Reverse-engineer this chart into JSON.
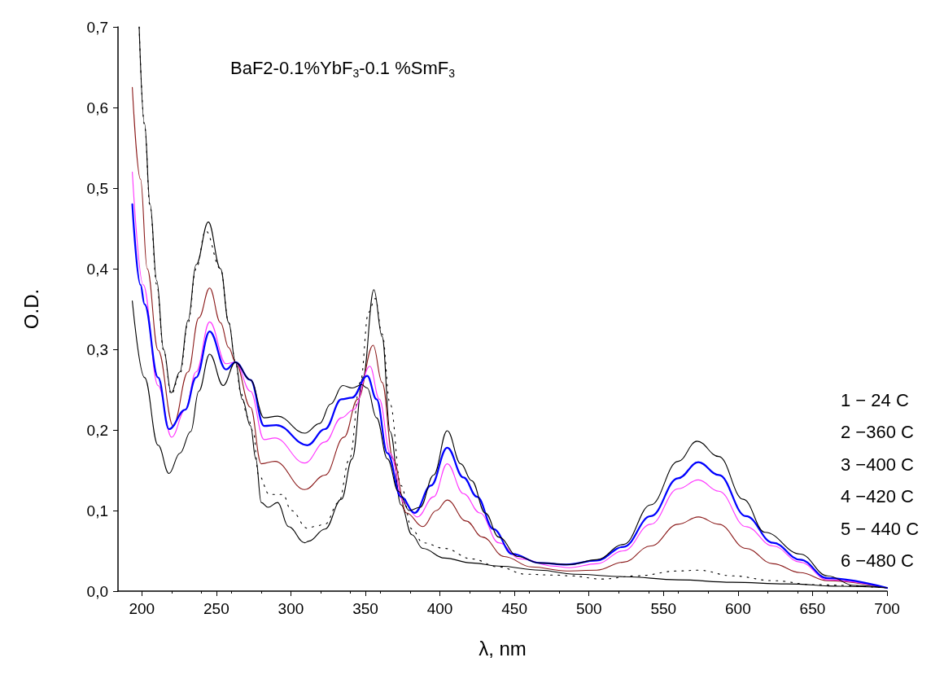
{
  "chart_data": {
    "type": "line",
    "title": "BaF2-0.1%YbF$_{3}$-0.1 %SmF$_{3}$",
    "xlabel": "λ, nm",
    "ylabel": "O.D.",
    "annotations": [
      "1 − 24 C",
      "2 −360 C",
      "3 −400 C",
      "4 −420 C",
      "5 − 440 C",
      "6 −480 C"
    ],
    "xlim": [
      184,
      700
    ],
    "xticks": [
      200,
      250,
      300,
      350,
      400,
      450,
      500,
      550,
      600,
      650,
      700
    ],
    "ylim": [
      0,
      0.7
    ],
    "yticks": [
      {
        "value": 0,
        "label": "0,0"
      },
      {
        "value": 0.1,
        "label": "0,1"
      },
      {
        "value": 0.2,
        "label": "0,2"
      },
      {
        "value": 0.3,
        "label": "0,3"
      },
      {
        "value": 0.4,
        "label": "0,4"
      },
      {
        "value": 0.5,
        "label": "0,5"
      },
      {
        "value": 0.6,
        "label": "0,6"
      },
      {
        "value": 0.7,
        "label": "0,7"
      }
    ],
    "grid": false,
    "marker": "none",
    "series": [
      {
        "color": "#000000",
        "line_style": "solid",
        "x": [
          198.2,
          201.8,
          205.5,
          210,
          214.6,
          219.7,
          225.5,
          231,
          236.4,
          244.6,
          252.8,
          258.3,
          262.8,
          267.4,
          272.9,
          276.5,
          280.1,
          284.7,
          291.1,
          298.4,
          309.3,
          312,
          322.9,
          333.9,
          341.1,
          348.4,
          355.7,
          361.2,
          366.6,
          373.9,
          381.2,
          388.5,
          403.1,
          421.3,
          439.5,
          466.8,
          490.5,
          523.3,
          559.8,
          596.2,
          632.6,
          669,
          700
        ],
        "values": [
          0.7,
          0.58,
          0.48,
          0.385,
          0.3,
          0.246,
          0.272,
          0.336,
          0.405,
          0.458,
          0.4,
          0.333,
          0.284,
          0.238,
          0.205,
          0.164,
          0.11,
          0.104,
          0.11,
          0.08,
          0.06,
          0.062,
          0.077,
          0.114,
          0.164,
          0.265,
          0.374,
          0.316,
          0.198,
          0.107,
          0.07,
          0.053,
          0.041,
          0.035,
          0.031,
          0.026,
          0.021,
          0.018,
          0.014,
          0.011,
          0.009,
          0.006,
          0.004
        ]
      },
      {
        "color": "#000000",
        "line_style": "dotted",
        "x": [
          198.2,
          201.8,
          205.5,
          210,
          214.6,
          219.7,
          225.5,
          231,
          236.4,
          242.8,
          252.8,
          258.3,
          262.8,
          266.5,
          271,
          274.7,
          278.3,
          285.6,
          294.7,
          300.2,
          311.1,
          315.6,
          322.9,
          332,
          339.3,
          346.6,
          352.1,
          356.6,
          361.2,
          366.6,
          373.9,
          381.2,
          388.5,
          403.1,
          421.3,
          439.5,
          457.7,
          475.9,
          486.9,
          508.8,
          532.4,
          559.8,
          573.4,
          596.2,
          623.5,
          650.8,
          700
        ],
        "values": [
          0.7,
          0.578,
          0.477,
          0.38,
          0.299,
          0.244,
          0.269,
          0.333,
          0.4,
          0.447,
          0.4,
          0.333,
          0.284,
          0.245,
          0.216,
          0.198,
          0.144,
          0.12,
          0.12,
          0.1,
          0.078,
          0.08,
          0.083,
          0.11,
          0.164,
          0.259,
          0.346,
          0.363,
          0.319,
          0.232,
          0.131,
          0.077,
          0.06,
          0.053,
          0.04,
          0.03,
          0.021,
          0.02,
          0.019,
          0.015,
          0.019,
          0.025,
          0.026,
          0.019,
          0.013,
          0.008,
          0.004
        ]
      },
      {
        "color": "#8b1a1a",
        "line_style": "solid",
        "x": [
          193.6,
          199.1,
          203.6,
          210.9,
          221,
          231,
          238.2,
          245.5,
          252.8,
          258.3,
          262.8,
          272.9,
          280.1,
          289.3,
          309.3,
          322.9,
          335.7,
          344.8,
          355.2,
          361.2,
          368.5,
          377.6,
          388.5,
          397.6,
          404.9,
          417.6,
          428.6,
          443.1,
          461.4,
          485,
          505.1,
          523.3,
          541.5,
          559.8,
          573.4,
          587.1,
          605.3,
          623.5,
          641.7,
          660,
          700
        ],
        "values": [
          0.625,
          0.511,
          0.4,
          0.299,
          0.205,
          0.272,
          0.339,
          0.376,
          0.333,
          0.302,
          0.284,
          0.228,
          0.158,
          0.161,
          0.126,
          0.144,
          0.191,
          0.238,
          0.305,
          0.259,
          0.164,
          0.097,
          0.08,
          0.1,
          0.113,
          0.087,
          0.067,
          0.043,
          0.03,
          0.025,
          0.026,
          0.036,
          0.056,
          0.083,
          0.092,
          0.083,
          0.053,
          0.034,
          0.023,
          0.013,
          0.004
        ]
      },
      {
        "color": "#ff33ff",
        "line_style": "solid",
        "x": [
          193.6,
          200.9,
          210.9,
          220,
          229.1,
          236.4,
          245.5,
          256.5,
          262.8,
          272.9,
          282,
          289.3,
          309.3,
          322.9,
          333.9,
          342,
          353,
          359.4,
          366.6,
          375.8,
          384.9,
          395.8,
          404.9,
          415.8,
          426.8,
          439.5,
          454.1,
          475.9,
          486.9,
          505.1,
          523.3,
          541.5,
          559.8,
          573.4,
          587.1,
          605.3,
          623.5,
          641.7,
          660,
          700
        ],
        "values": [
          0.52,
          0.38,
          0.255,
          0.191,
          0.225,
          0.272,
          0.334,
          0.282,
          0.284,
          0.248,
          0.188,
          0.19,
          0.159,
          0.185,
          0.215,
          0.225,
          0.279,
          0.238,
          0.171,
          0.11,
          0.092,
          0.117,
          0.158,
          0.121,
          0.097,
          0.06,
          0.04,
          0.031,
          0.029,
          0.034,
          0.05,
          0.083,
          0.127,
          0.138,
          0.124,
          0.08,
          0.056,
          0.036,
          0.014,
          0.004
        ]
      },
      {
        "color": "#0000ff",
        "line_style": "solid",
        "x": [
          193.6,
          199.1,
          201.8,
          210.9,
          218.2,
          229.1,
          236.4,
          245.5,
          256.5,
          262.8,
          272.9,
          282,
          290.2,
          311.1,
          322.9,
          333.9,
          341.1,
          351.2,
          357.5,
          364.8,
          373.9,
          383,
          394,
          404.9,
          415.8,
          424.9,
          435.9,
          448.6,
          466.8,
          485,
          505.1,
          523.3,
          541.5,
          559.8,
          573.4,
          587.1,
          605.3,
          623.5,
          641.7,
          660,
          700
        ],
        "values": [
          0.48,
          0.38,
          0.356,
          0.265,
          0.201,
          0.225,
          0.265,
          0.322,
          0.275,
          0.284,
          0.262,
          0.205,
          0.206,
          0.181,
          0.201,
          0.238,
          0.24,
          0.267,
          0.238,
          0.171,
          0.117,
          0.097,
          0.131,
          0.178,
          0.141,
          0.117,
          0.077,
          0.046,
          0.035,
          0.033,
          0.038,
          0.055,
          0.093,
          0.14,
          0.16,
          0.144,
          0.093,
          0.06,
          0.039,
          0.016,
          0.004
        ]
      },
      {
        "color": "#000000",
        "line_style": "solid",
        "x": [
          193.6,
          201.8,
          210.9,
          218.2,
          225.5,
          232.8,
          238.2,
          245.5,
          254.6,
          262.8,
          272.9,
          282,
          291.1,
          309.3,
          319.3,
          326.6,
          334.8,
          341.1,
          347.5,
          351.2,
          357.5,
          364.8,
          372.1,
          379.4,
          386.7,
          395.8,
          404.9,
          414,
          421.3,
          430.4,
          439.5,
          452.3,
          466.8,
          486.9,
          505.1,
          523.3,
          541.5,
          559.8,
          572.5,
          587.1,
          603.5,
          618.1,
          641.7,
          660,
          678.1,
          700
        ],
        "values": [
          0.36,
          0.265,
          0.181,
          0.146,
          0.171,
          0.198,
          0.248,
          0.294,
          0.255,
          0.284,
          0.262,
          0.215,
          0.217,
          0.196,
          0.208,
          0.232,
          0.255,
          0.252,
          0.256,
          0.252,
          0.215,
          0.164,
          0.124,
          0.1,
          0.104,
          0.144,
          0.199,
          0.158,
          0.137,
          0.097,
          0.067,
          0.043,
          0.035,
          0.033,
          0.039,
          0.058,
          0.107,
          0.161,
          0.186,
          0.167,
          0.114,
          0.073,
          0.046,
          0.019,
          0.007,
          0.004
        ]
      }
    ]
  }
}
